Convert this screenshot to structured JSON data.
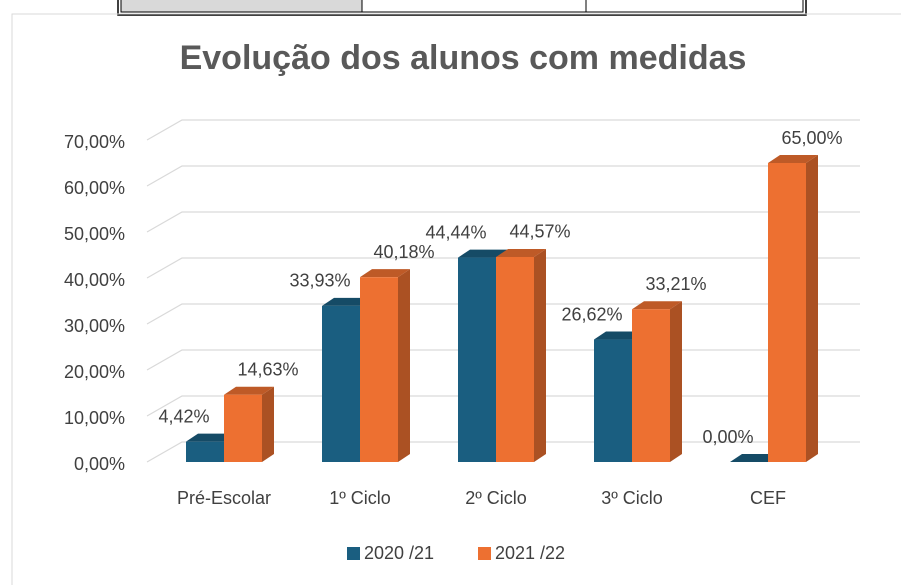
{
  "chart_data": {
    "type": "bar3d",
    "title": "Evolução dos alunos com medidas",
    "categories": [
      "Pré-Escolar",
      "1º Ciclo",
      "2º Ciclo",
      "3º Ciclo",
      "CEF"
    ],
    "series": [
      {
        "name": "2020 /21",
        "color": "#1a5e80",
        "values": [
          4.42,
          33.93,
          44.44,
          26.62,
          0
        ],
        "value_labels": [
          "4,42%",
          "33,93%",
          "44,44%",
          "26,62%",
          "0,00%"
        ]
      },
      {
        "name": "2021 /22",
        "color": "#ed7031",
        "values": [
          14.63,
          40.18,
          44.57,
          33.21,
          65
        ],
        "value_labels": [
          "14,63%",
          "40,18%",
          "44,57%",
          "33,21%",
          "65,00%"
        ]
      }
    ],
    "ylim": [
      0,
      70
    ],
    "yticks": [
      {
        "value": 0,
        "label": "0,00%"
      },
      {
        "value": 10,
        "label": "10,00%"
      },
      {
        "value": 20,
        "label": "20,00%"
      },
      {
        "value": 30,
        "label": "30,00%"
      },
      {
        "value": 40,
        "label": "40,00%"
      },
      {
        "value": 50,
        "label": "50,00%"
      },
      {
        "value": 60,
        "label": "60,00%"
      },
      {
        "value": 70,
        "label": "70,00%"
      }
    ],
    "grid": true,
    "legend": "bottom"
  }
}
